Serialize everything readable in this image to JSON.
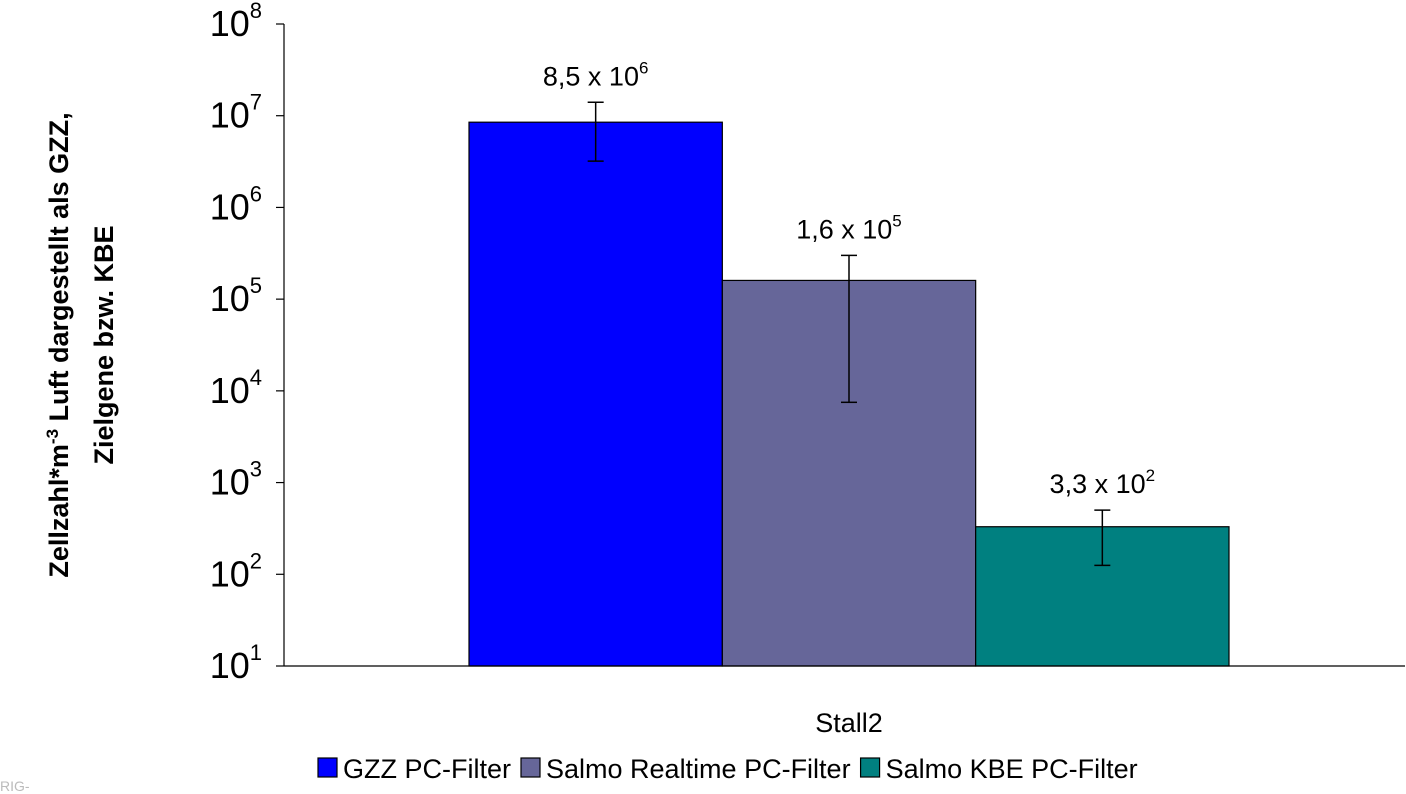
{
  "chart_data": {
    "type": "bar",
    "y_scale": "log",
    "ylim": [
      10,
      100000000
    ],
    "y_ticks": [
      {
        "base": "10",
        "exp": "1"
      },
      {
        "base": "10",
        "exp": "2"
      },
      {
        "base": "10",
        "exp": "3"
      },
      {
        "base": "10",
        "exp": "4"
      },
      {
        "base": "10",
        "exp": "5"
      },
      {
        "base": "10",
        "exp": "6"
      },
      {
        "base": "10",
        "exp": "7"
      },
      {
        "base": "10",
        "exp": "8"
      }
    ],
    "ylabel": {
      "line1_pre": "Zellzahl*m",
      "line1_sup": "-3",
      "line1_post": " Luft dargestellt als GZZ,",
      "line2": "Zielgene bzw. KBE"
    },
    "categories": [
      "Stall2"
    ],
    "series": [
      {
        "name": "GZZ PC-Filter",
        "color": "#0000ff",
        "values": [
          8500000
        ],
        "error": [
          [
            3200000,
            14000000
          ]
        ],
        "label_main": "8,5 x 10",
        "label_sup": "6"
      },
      {
        "name": "Salmo Realtime PC-Filter",
        "color": "#666699",
        "values": [
          160000
        ],
        "error": [
          [
            7500,
            300000
          ]
        ],
        "label_main": "1,6 x 10",
        "label_sup": "5"
      },
      {
        "name": "Salmo KBE PC-Filter",
        "color": "#008080",
        "values": [
          330
        ],
        "error": [
          [
            125,
            500
          ]
        ],
        "label_main": "3,3 x 10",
        "label_sup": "2"
      }
    ],
    "legend_position": "bottom",
    "grid": false
  },
  "watermark": "RIG-"
}
